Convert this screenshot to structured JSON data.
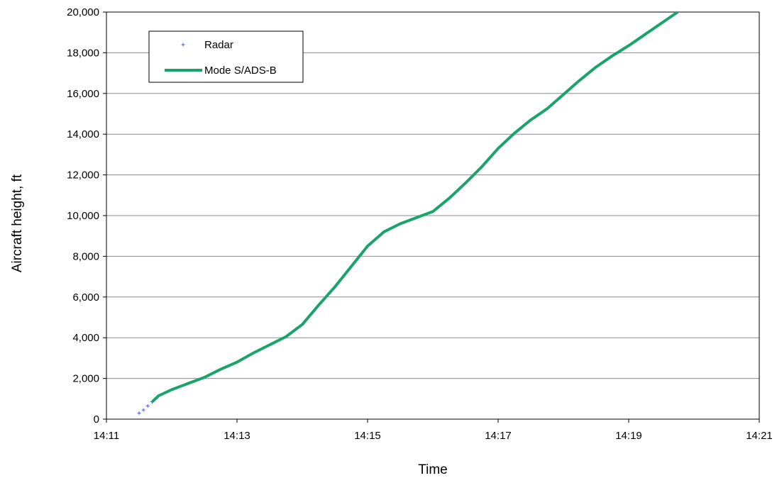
{
  "chart_data": {
    "type": "line",
    "title": "",
    "xlabel": "Time",
    "ylabel": "Aircraft height, ft",
    "x_tick_labels": [
      "14:11",
      "14:13",
      "14:15",
      "14:17",
      "14:19",
      "14:21"
    ],
    "y_tick_labels": [
      "0",
      "2,000",
      "4,000",
      "6,000",
      "8,000",
      "10,000",
      "12,000",
      "14,000",
      "16,000",
      "18,000",
      "20,000"
    ],
    "xlim": [
      "14:11",
      "14:21"
    ],
    "ylim": [
      0,
      20000
    ],
    "grid": "horizontal",
    "legend_position": "top-left",
    "series": [
      {
        "name": "Radar",
        "style": "markers",
        "marker": "plus",
        "color": "#4a5bd6",
        "points": [
          [
            "14:11:30",
            300
          ],
          [
            "14:11:34",
            450
          ],
          [
            "14:11:38",
            650
          ],
          [
            "14:11:42",
            850
          ]
        ]
      },
      {
        "name": "Mode S/ADS-B",
        "style": "line",
        "color": "#1aa36a",
        "points": [
          [
            "14:11:42",
            850
          ],
          [
            "14:11:48",
            1150
          ],
          [
            "14:12:00",
            1450
          ],
          [
            "14:12:15",
            1750
          ],
          [
            "14:12:30",
            2050
          ],
          [
            "14:12:45",
            2450
          ],
          [
            "14:13:00",
            2800
          ],
          [
            "14:13:15",
            3250
          ],
          [
            "14:13:30",
            3650
          ],
          [
            "14:13:45",
            4050
          ],
          [
            "14:14:00",
            4650
          ],
          [
            "14:14:15",
            5600
          ],
          [
            "14:14:30",
            6500
          ],
          [
            "14:14:45",
            7500
          ],
          [
            "14:15:00",
            8500
          ],
          [
            "14:15:15",
            9200
          ],
          [
            "14:15:30",
            9600
          ],
          [
            "14:15:45",
            9900
          ],
          [
            "14:16:00",
            10200
          ],
          [
            "14:16:15",
            10850
          ],
          [
            "14:16:30",
            11600
          ],
          [
            "14:16:45",
            12400
          ],
          [
            "14:17:00",
            13300
          ],
          [
            "14:17:15",
            14050
          ],
          [
            "14:17:30",
            14700
          ],
          [
            "14:17:45",
            15250
          ],
          [
            "14:18:00",
            15950
          ],
          [
            "14:18:15",
            16650
          ],
          [
            "14:18:30",
            17300
          ],
          [
            "14:18:45",
            17850
          ],
          [
            "14:19:00",
            18350
          ],
          [
            "14:19:15",
            18900
          ],
          [
            "14:19:30",
            19450
          ],
          [
            "14:19:45",
            20000
          ]
        ]
      }
    ]
  }
}
